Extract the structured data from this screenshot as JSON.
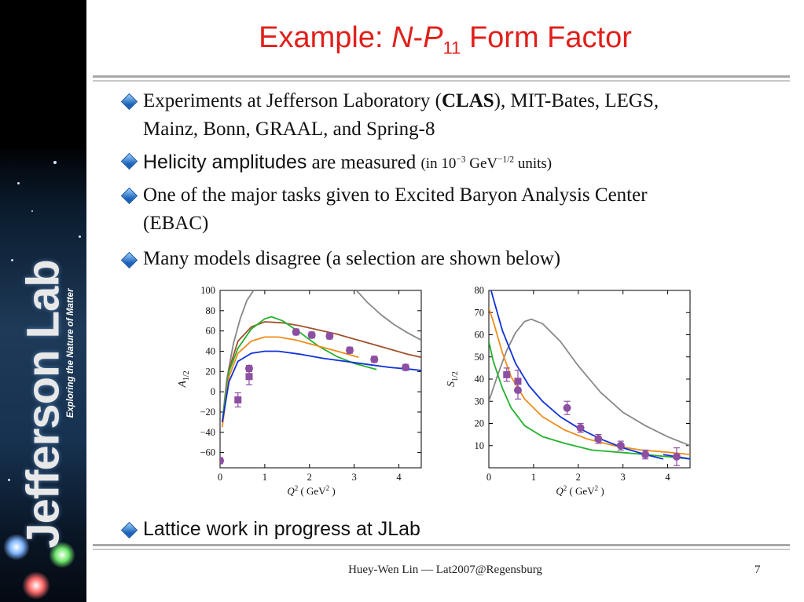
{
  "brand": {
    "name": "Jefferson Lab",
    "tagline": "Exploring the Nature of Matter"
  },
  "slide": {
    "title": {
      "prefix": "Example: ",
      "N": "N",
      "dash": "-",
      "P": "P",
      "sub": "11",
      "suffix": " Form Factor"
    },
    "bullets": [
      {
        "pre": "Experiments at Jefferson Laboratory (",
        "bold": "CLAS",
        "post": "), MIT-Bates, LEGS,",
        "line2": "Mainz, Bonn, GRAAL, and Spring-8"
      },
      {
        "sans": "Helicity amplitudes",
        "text": " are measured ",
        "units_pre": "(in 10",
        "units_exp1": "−3",
        "units_mid": " GeV",
        "units_exp2": "−1/2",
        "units_post": " units)"
      },
      {
        "text": "One of the major tasks given to Excited Baryon Analysis Center",
        "line2": "(EBAC)"
      },
      {
        "text": "Many models disagree (a selection are shown below)"
      },
      {
        "text": "Lattice work in progress at JLab"
      }
    ],
    "footer": {
      "author": "Huey-Wen Lin — Lat2007@Regensburg",
      "page": "7"
    }
  },
  "colors": {
    "title": "#e0201b",
    "grey": "#888888",
    "brown": "#a0522d",
    "green": "#22b22b",
    "orange": "#f08c1a",
    "blue": "#1030d8",
    "points": "#8c4fa2"
  },
  "chart_data": [
    {
      "type": "line",
      "ylabel": "A1/2",
      "ylabel_main": "A",
      "ylabel_sub": "1/2",
      "xlabel": "Q2 ( GeV2 )",
      "xlim": [
        0,
        4.5
      ],
      "ylim": [
        -75,
        100
      ],
      "xticks": [
        0,
        1,
        2,
        3,
        4
      ],
      "yticks": [
        100,
        80,
        60,
        40,
        20,
        0,
        -20,
        -40,
        -60
      ],
      "series": [
        {
          "color": "grey",
          "x": [
            0.05,
            0.15,
            0.3,
            0.45,
            0.6,
            0.75
          ],
          "y": [
            -30,
            12,
            48,
            72,
            90,
            100
          ]
        },
        {
          "color": "grey",
          "x": [
            3.05,
            3.3,
            3.6,
            3.9,
            4.2,
            4.5
          ],
          "y": [
            100,
            88,
            76,
            66,
            58,
            51
          ]
        },
        {
          "color": "brown",
          "x": [
            0.05,
            0.2,
            0.4,
            0.7,
            1.0,
            1.4,
            1.8,
            2.2,
            2.6,
            3.0,
            3.4,
            3.8,
            4.2,
            4.5
          ],
          "y": [
            -30,
            22,
            50,
            64,
            69,
            68,
            65,
            61,
            57,
            52,
            47,
            42,
            37,
            34
          ]
        },
        {
          "color": "green",
          "x": [
            0.05,
            0.2,
            0.4,
            0.7,
            1.0,
            1.15,
            1.4,
            1.8,
            2.2,
            2.6,
            3.0,
            3.5
          ],
          "y": [
            -30,
            20,
            43,
            62,
            72,
            74,
            70,
            58,
            45,
            35,
            28,
            22
          ]
        },
        {
          "color": "orange",
          "x": [
            0.05,
            0.2,
            0.4,
            0.7,
            1.0,
            1.3,
            1.7,
            2.2,
            2.7,
            3.1
          ],
          "y": [
            -35,
            15,
            38,
            50,
            54,
            54,
            51,
            45,
            39,
            34
          ]
        },
        {
          "color": "blue",
          "x": [
            0.05,
            0.2,
            0.4,
            0.7,
            1.0,
            1.3,
            1.8,
            2.3,
            2.8,
            3.3,
            3.8,
            4.3,
            4.5
          ],
          "y": [
            -30,
            10,
            30,
            38,
            40,
            40,
            37,
            33,
            30,
            27,
            24,
            22,
            21
          ]
        }
      ],
      "points": [
        {
          "x": 0.0,
          "y": -68,
          "err": 3,
          "marker": "circle"
        },
        {
          "x": 0.4,
          "y": -8,
          "err": 7,
          "marker": "square"
        },
        {
          "x": 0.65,
          "y": 15,
          "err": 8,
          "marker": "square"
        },
        {
          "x": 0.65,
          "y": 23,
          "err": 3,
          "marker": "circle"
        },
        {
          "x": 1.7,
          "y": 59,
          "err": 3,
          "marker": "circle"
        },
        {
          "x": 2.05,
          "y": 56,
          "err": 3,
          "marker": "circle"
        },
        {
          "x": 2.45,
          "y": 55,
          "err": 3,
          "marker": "circle"
        },
        {
          "x": 2.9,
          "y": 41,
          "err": 3,
          "marker": "circle"
        },
        {
          "x": 3.45,
          "y": 32,
          "err": 3,
          "marker": "circle"
        },
        {
          "x": 4.15,
          "y": 24,
          "err": 3,
          "marker": "circle"
        }
      ]
    },
    {
      "type": "line",
      "ylabel": "S1/2",
      "ylabel_main": "S",
      "ylabel_sub": "1/2",
      "xlabel": "Q2 ( GeV2 )",
      "xlim": [
        0,
        4.5
      ],
      "ylim": [
        0,
        80
      ],
      "xticks": [
        0,
        1,
        2,
        3,
        4
      ],
      "yticks": [
        80,
        70,
        60,
        50,
        40,
        30,
        20,
        10
      ],
      "series": [
        {
          "color": "grey",
          "x": [
            0.0,
            0.2,
            0.4,
            0.6,
            0.8,
            0.95,
            1.2,
            1.6,
            2.0,
            2.5,
            3.0,
            3.5,
            4.0,
            4.5
          ],
          "y": [
            30,
            42,
            53,
            61,
            66,
            67,
            65,
            57,
            46,
            34,
            25,
            19,
            14,
            10
          ]
        },
        {
          "color": "orange",
          "x": [
            0.0,
            0.1,
            0.3,
            0.5,
            0.8,
            1.2,
            1.7,
            2.2,
            2.8,
            3.4,
            4.0,
            4.5
          ],
          "y": [
            72,
            66,
            52,
            41,
            31,
            23,
            17,
            13,
            10,
            8,
            7,
            6
          ]
        },
        {
          "color": "green",
          "x": [
            0.0,
            0.1,
            0.3,
            0.5,
            0.8,
            1.2,
            1.7,
            2.3,
            2.9,
            3.5,
            4.0,
            4.5
          ],
          "y": [
            57,
            48,
            36,
            27,
            19,
            14,
            11,
            8,
            7,
            6,
            5,
            4
          ]
        },
        {
          "color": "blue",
          "x": [
            0.05,
            0.3,
            0.6,
            0.9,
            1.2,
            1.6,
            2.0,
            2.5,
            3.0,
            3.5,
            3.9
          ],
          "y": [
            80,
            62,
            47,
            37,
            30,
            23,
            18,
            13,
            9,
            6,
            4
          ]
        },
        {
          "color": "blue",
          "x": [
            3.9,
            4.2,
            4.5
          ],
          "y": [
            6,
            5,
            4
          ]
        }
      ],
      "points": [
        {
          "x": 0.4,
          "y": 42,
          "err": 3,
          "marker": "square"
        },
        {
          "x": 0.65,
          "y": 39,
          "err": 5,
          "marker": "square"
        },
        {
          "x": 0.65,
          "y": 35,
          "err": 4,
          "marker": "circle"
        },
        {
          "x": 1.75,
          "y": 27,
          "err": 3,
          "marker": "circle"
        },
        {
          "x": 2.05,
          "y": 18,
          "err": 2,
          "marker": "circle"
        },
        {
          "x": 2.45,
          "y": 13,
          "err": 2,
          "marker": "circle"
        },
        {
          "x": 2.95,
          "y": 10,
          "err": 2,
          "marker": "circle"
        },
        {
          "x": 3.5,
          "y": 6,
          "err": 2,
          "marker": "circle"
        },
        {
          "x": 4.2,
          "y": 5,
          "err": 4,
          "marker": "circle"
        }
      ]
    }
  ]
}
